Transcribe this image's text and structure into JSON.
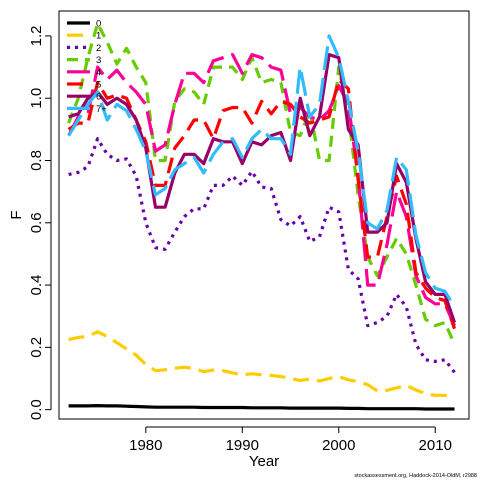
{
  "chart_data": {
    "type": "line",
    "xlabel": "Year",
    "ylabel": "F",
    "xlim": [
      1971,
      2013.5
    ],
    "ylim": [
      -0.03,
      1.28
    ],
    "x_ticks": [
      1980,
      1990,
      2000,
      2010
    ],
    "y_ticks": [
      0.0,
      0.2,
      0.4,
      0.6,
      0.8,
      1.0,
      1.2
    ],
    "y_tick_labels": [
      "0.0",
      "0.2",
      "0.4",
      "0.6",
      "0.8",
      "1.0",
      "1.2"
    ],
    "legend_position": "top-left",
    "footer": "stockassessment.org, Haddock-2014-OldM, r2988",
    "x": [
      1972,
      1973,
      1974,
      1975,
      1976,
      1977,
      1978,
      1979,
      1980,
      1981,
      1982,
      1983,
      1984,
      1985,
      1986,
      1987,
      1988,
      1989,
      1990,
      1991,
      1992,
      1993,
      1994,
      1995,
      1996,
      1997,
      1998,
      1999,
      2000,
      2001,
      2002,
      2003,
      2004,
      2005,
      2006,
      2007,
      2008,
      2009,
      2010,
      2011,
      2012
    ],
    "series": [
      {
        "name": "0",
        "color": "#000000",
        "dash": "",
        "width": 3.2,
        "values": [
          0.012,
          0.012,
          0.012,
          0.013,
          0.012,
          0.012,
          0.011,
          0.01,
          0.009,
          0.008,
          0.008,
          0.008,
          0.008,
          0.008,
          0.007,
          0.007,
          0.007,
          0.007,
          0.007,
          0.006,
          0.006,
          0.006,
          0.006,
          0.005,
          0.005,
          0.005,
          0.005,
          0.005,
          0.005,
          0.004,
          0.004,
          0.003,
          0.003,
          0.003,
          0.003,
          0.003,
          0.003,
          0.002,
          0.002,
          0.002,
          0.002
        ]
      },
      {
        "name": "1",
        "color": "#FFCC00",
        "dash": "16,8",
        "width": 3.2,
        "values": [
          0.225,
          0.232,
          0.235,
          0.25,
          0.235,
          0.215,
          0.195,
          0.175,
          0.145,
          0.125,
          0.128,
          0.133,
          0.136,
          0.132,
          0.122,
          0.127,
          0.125,
          0.118,
          0.112,
          0.115,
          0.112,
          0.11,
          0.106,
          0.1,
          0.094,
          0.098,
          0.092,
          0.1,
          0.106,
          0.096,
          0.09,
          0.08,
          0.06,
          0.062,
          0.07,
          0.078,
          0.063,
          0.052,
          0.046,
          0.046,
          0.04
        ]
      },
      {
        "name": "2",
        "color": "#6600AA",
        "dash": "3,5",
        "width": 3.2,
        "values": [
          0.755,
          0.762,
          0.78,
          0.87,
          0.82,
          0.8,
          0.805,
          0.75,
          0.6,
          0.52,
          0.515,
          0.57,
          0.62,
          0.645,
          0.645,
          0.72,
          0.72,
          0.75,
          0.72,
          0.765,
          0.715,
          0.71,
          0.61,
          0.59,
          0.62,
          0.54,
          0.555,
          0.65,
          0.635,
          0.45,
          0.42,
          0.27,
          0.28,
          0.3,
          0.37,
          0.33,
          0.21,
          0.16,
          0.155,
          0.16,
          0.12
        ]
      },
      {
        "name": "3",
        "color": "#66CC00",
        "dash": "11,7",
        "width": 3.2,
        "values": [
          0.92,
          1.0,
          1.13,
          1.24,
          1.18,
          1.11,
          1.16,
          1.1,
          1.05,
          0.8,
          0.8,
          0.99,
          1.03,
          1.02,
          0.98,
          1.1,
          1.1,
          1.1,
          1.06,
          1.13,
          1.05,
          1.06,
          1.05,
          0.89,
          0.88,
          0.96,
          0.8,
          0.8,
          1.1,
          0.95,
          0.69,
          0.49,
          0.43,
          0.49,
          0.55,
          0.5,
          0.4,
          0.29,
          0.27,
          0.28,
          0.21
        ]
      },
      {
        "name": "4",
        "color": "#FF0099",
        "dash": "24,8",
        "width": 3.2,
        "values": [
          0.88,
          0.94,
          0.95,
          1.1,
          1.06,
          1.09,
          1.05,
          1.02,
          0.98,
          0.83,
          0.85,
          0.98,
          1.08,
          1.08,
          1.05,
          1.12,
          1.13,
          1.14,
          1.08,
          1.14,
          1.13,
          1.1,
          1.09,
          0.95,
          0.97,
          0.94,
          0.93,
          0.96,
          1.04,
          0.98,
          0.75,
          0.4,
          0.4,
          0.53,
          0.7,
          0.62,
          0.43,
          0.36,
          0.34,
          0.34,
          0.27
        ]
      },
      {
        "name": "5",
        "color": "#FF0000",
        "dash": "16,8",
        "width": 3.2,
        "values": [
          0.9,
          0.92,
          0.92,
          1.05,
          1.0,
          1.01,
          1.0,
          0.93,
          0.86,
          0.72,
          0.72,
          0.84,
          0.88,
          0.93,
          0.93,
          0.87,
          0.96,
          0.97,
          0.97,
          0.92,
          0.99,
          0.95,
          0.99,
          0.98,
          0.94,
          0.92,
          0.93,
          0.94,
          1.06,
          1.03,
          0.74,
          0.49,
          0.49,
          0.62,
          0.75,
          0.66,
          0.44,
          0.39,
          0.36,
          0.35,
          0.26
        ]
      },
      {
        "name": "6",
        "color": "#990066",
        "dash": "",
        "width": 3.2,
        "values": [
          0.94,
          0.95,
          1.0,
          1.02,
          0.98,
          1.0,
          0.98,
          0.93,
          0.84,
          0.65,
          0.65,
          0.76,
          0.82,
          0.82,
          0.79,
          0.87,
          0.86,
          0.86,
          0.79,
          0.86,
          0.85,
          0.88,
          0.89,
          0.8,
          1.0,
          0.88,
          0.94,
          1.14,
          1.13,
          0.9,
          0.85,
          0.57,
          0.57,
          0.6,
          0.79,
          0.73,
          0.55,
          0.41,
          0.37,
          0.37,
          0.28
        ]
      },
      {
        "name": "7+",
        "color": "#33BBFF",
        "dash": "24,8",
        "width": 3.2,
        "values": [
          0.88,
          0.93,
          0.98,
          1.02,
          0.93,
          0.98,
          0.96,
          0.9,
          0.83,
          0.69,
          0.71,
          0.77,
          0.79,
          0.81,
          0.76,
          0.82,
          0.86,
          0.87,
          0.81,
          0.87,
          0.9,
          0.87,
          0.87,
          0.82,
          1.1,
          0.94,
          0.98,
          1.2,
          1.13,
          0.99,
          0.83,
          0.6,
          0.58,
          0.64,
          0.81,
          0.77,
          0.56,
          0.44,
          0.39,
          0.38,
          0.33
        ]
      }
    ]
  }
}
